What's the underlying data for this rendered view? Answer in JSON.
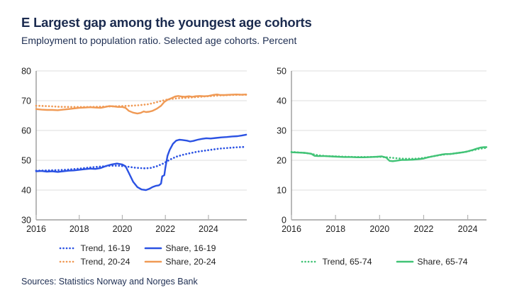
{
  "header": {
    "title": "E Largest gap among the youngest age cohorts",
    "subtitle": "Employment to population ratio. Selected age cohorts. Percent"
  },
  "footer": {
    "sources": "Sources: Statistics Norway and Norges Bank"
  },
  "colors": {
    "title_text": "#1b2b4f",
    "tick_text": "#1f1f1f",
    "grid": "#dedede",
    "axis": "#8a8a8a",
    "tick": "#b3b3b3",
    "blue": "#2b52e3",
    "orange": "#f09a55",
    "green": "#41c376"
  },
  "chart_data": [
    {
      "type": "line",
      "title": "",
      "xlabel": "",
      "ylabel": "",
      "grid": true,
      "legend_position": "bottom",
      "x_domain": [
        2016,
        2025.78
      ],
      "y_domain": [
        30,
        80
      ],
      "x_ticks": [
        2016,
        2018,
        2020,
        2022,
        2024
      ],
      "y_ticks": [
        30,
        40,
        50,
        60,
        70,
        80
      ],
      "series": [
        {
          "name": "Trend, 16-19",
          "color": "#2b52e3",
          "style": "dotted",
          "points": [
            [
              2016.0,
              46.5
            ],
            [
              2016.5,
              46.6
            ],
            [
              2017.0,
              46.7
            ],
            [
              2017.5,
              46.9
            ],
            [
              2018.0,
              47.2
            ],
            [
              2018.5,
              47.6
            ],
            [
              2019.0,
              47.9
            ],
            [
              2019.5,
              48.2
            ],
            [
              2019.8,
              48.2
            ],
            [
              2020.2,
              47.9
            ],
            [
              2020.6,
              47.5
            ],
            [
              2021.0,
              47.3
            ],
            [
              2021.3,
              47.4
            ],
            [
              2021.6,
              48.0
            ],
            [
              2021.9,
              48.9
            ],
            [
              2022.2,
              50.2
            ],
            [
              2022.5,
              51.2
            ],
            [
              2022.8,
              51.8
            ],
            [
              2023.1,
              52.3
            ],
            [
              2023.5,
              52.9
            ],
            [
              2024.0,
              53.4
            ],
            [
              2024.5,
              53.9
            ],
            [
              2025.0,
              54.2
            ],
            [
              2025.4,
              54.4
            ],
            [
              2025.75,
              54.5
            ]
          ]
        },
        {
          "name": "Share, 16-19",
          "color": "#2b52e3",
          "style": "solid",
          "points": [
            [
              2016.0,
              46.3
            ],
            [
              2016.25,
              46.4
            ],
            [
              2016.5,
              46.2
            ],
            [
              2016.75,
              46.3
            ],
            [
              2017.0,
              46.1
            ],
            [
              2017.25,
              46.3
            ],
            [
              2017.5,
              46.5
            ],
            [
              2017.75,
              46.6
            ],
            [
              2018.0,
              46.8
            ],
            [
              2018.25,
              47.0
            ],
            [
              2018.5,
              47.2
            ],
            [
              2018.75,
              47.1
            ],
            [
              2019.0,
              47.4
            ],
            [
              2019.25,
              48.1
            ],
            [
              2019.5,
              48.6
            ],
            [
              2019.75,
              48.9
            ],
            [
              2020.0,
              48.6
            ],
            [
              2020.15,
              48.0
            ],
            [
              2020.3,
              45.8
            ],
            [
              2020.5,
              42.8
            ],
            [
              2020.7,
              41.0
            ],
            [
              2020.9,
              40.2
            ],
            [
              2021.1,
              40.0
            ],
            [
              2021.25,
              40.4
            ],
            [
              2021.4,
              41.0
            ],
            [
              2021.55,
              41.4
            ],
            [
              2021.7,
              41.6
            ],
            [
              2021.8,
              42.2
            ],
            [
              2021.85,
              44.6
            ],
            [
              2021.95,
              45.0
            ],
            [
              2022.0,
              47.5
            ],
            [
              2022.1,
              51.5
            ],
            [
              2022.2,
              53.5
            ],
            [
              2022.35,
              55.5
            ],
            [
              2022.5,
              56.6
            ],
            [
              2022.65,
              56.9
            ],
            [
              2022.8,
              56.8
            ],
            [
              2023.0,
              56.6
            ],
            [
              2023.15,
              56.3
            ],
            [
              2023.3,
              56.5
            ],
            [
              2023.5,
              56.9
            ],
            [
              2023.7,
              57.2
            ],
            [
              2023.9,
              57.4
            ],
            [
              2024.1,
              57.3
            ],
            [
              2024.35,
              57.5
            ],
            [
              2024.6,
              57.7
            ],
            [
              2024.85,
              57.8
            ],
            [
              2025.1,
              58.0
            ],
            [
              2025.35,
              58.1
            ],
            [
              2025.55,
              58.3
            ],
            [
              2025.75,
              58.6
            ]
          ]
        },
        {
          "name": "Trend, 20-24",
          "color": "#f09a55",
          "style": "dotted",
          "points": [
            [
              2016.0,
              68.3
            ],
            [
              2016.5,
              68.2
            ],
            [
              2017.0,
              68.0
            ],
            [
              2017.5,
              67.9
            ],
            [
              2018.0,
              67.9
            ],
            [
              2018.5,
              67.9
            ],
            [
              2019.0,
              68.0
            ],
            [
              2019.5,
              68.1
            ],
            [
              2020.0,
              68.2
            ],
            [
              2020.4,
              68.3
            ],
            [
              2020.8,
              68.5
            ],
            [
              2021.2,
              68.8
            ],
            [
              2021.5,
              69.3
            ],
            [
              2021.8,
              69.9
            ],
            [
              2022.1,
              70.4
            ],
            [
              2022.4,
              70.7
            ],
            [
              2022.7,
              70.9
            ],
            [
              2023.0,
              71.0
            ],
            [
              2023.4,
              71.2
            ],
            [
              2023.8,
              71.4
            ],
            [
              2024.2,
              71.6
            ],
            [
              2024.6,
              71.8
            ],
            [
              2025.0,
              71.9
            ],
            [
              2025.4,
              72.0
            ],
            [
              2025.75,
              72.0
            ]
          ]
        },
        {
          "name": "Share, 20-24",
          "color": "#f09a55",
          "style": "solid",
          "points": [
            [
              2016.0,
              67.2
            ],
            [
              2016.25,
              67.0
            ],
            [
              2016.5,
              66.9
            ],
            [
              2016.75,
              66.9
            ],
            [
              2017.0,
              66.8
            ],
            [
              2017.25,
              67.0
            ],
            [
              2017.5,
              67.2
            ],
            [
              2017.75,
              67.4
            ],
            [
              2018.0,
              67.6
            ],
            [
              2018.25,
              67.7
            ],
            [
              2018.5,
              67.8
            ],
            [
              2018.75,
              67.7
            ],
            [
              2019.0,
              67.6
            ],
            [
              2019.2,
              67.9
            ],
            [
              2019.4,
              68.2
            ],
            [
              2019.6,
              68.1
            ],
            [
              2019.8,
              67.9
            ],
            [
              2020.0,
              67.9
            ],
            [
              2020.15,
              67.6
            ],
            [
              2020.3,
              66.6
            ],
            [
              2020.5,
              66.0
            ],
            [
              2020.7,
              65.7
            ],
            [
              2020.85,
              65.9
            ],
            [
              2021.0,
              66.4
            ],
            [
              2021.1,
              66.2
            ],
            [
              2021.25,
              66.3
            ],
            [
              2021.4,
              66.6
            ],
            [
              2021.6,
              67.3
            ],
            [
              2021.8,
              68.3
            ],
            [
              2021.95,
              69.6
            ],
            [
              2022.1,
              70.3
            ],
            [
              2022.3,
              70.9
            ],
            [
              2022.45,
              71.4
            ],
            [
              2022.6,
              71.6
            ],
            [
              2022.75,
              71.4
            ],
            [
              2022.9,
              71.3
            ],
            [
              2023.1,
              71.5
            ],
            [
              2023.25,
              71.3
            ],
            [
              2023.4,
              71.5
            ],
            [
              2023.6,
              71.6
            ],
            [
              2023.8,
              71.5
            ],
            [
              2024.0,
              71.6
            ],
            [
              2024.2,
              71.9
            ],
            [
              2024.4,
              72.1
            ],
            [
              2024.55,
              71.9
            ],
            [
              2024.75,
              71.9
            ],
            [
              2025.0,
              72.0
            ],
            [
              2025.3,
              72.1
            ],
            [
              2025.55,
              72.0
            ],
            [
              2025.75,
              72.1
            ]
          ]
        }
      ]
    },
    {
      "type": "line",
      "title": "",
      "xlabel": "",
      "ylabel": "",
      "grid": true,
      "legend_position": "bottom",
      "x_domain": [
        2016,
        2024.85
      ],
      "y_domain": [
        0,
        50
      ],
      "x_ticks": [
        2016,
        2018,
        2020,
        2022,
        2024
      ],
      "y_ticks": [
        0,
        10,
        20,
        30,
        40,
        50
      ],
      "series": [
        {
          "name": "Trend, 65-74",
          "color": "#41c376",
          "style": "dotted",
          "points": [
            [
              2016.0,
              22.8
            ],
            [
              2016.4,
              22.6
            ],
            [
              2016.8,
              22.3
            ],
            [
              2017.2,
              21.7
            ],
            [
              2017.6,
              21.4
            ],
            [
              2018.0,
              21.3
            ],
            [
              2018.5,
              21.2
            ],
            [
              2019.0,
              21.1
            ],
            [
              2019.5,
              21.1
            ],
            [
              2020.0,
              21.2
            ],
            [
              2020.3,
              21.0
            ],
            [
              2020.6,
              20.8
            ],
            [
              2020.9,
              20.6
            ],
            [
              2021.2,
              20.5
            ],
            [
              2021.5,
              20.5
            ],
            [
              2021.8,
              20.6
            ],
            [
              2022.1,
              20.9
            ],
            [
              2022.4,
              21.3
            ],
            [
              2022.7,
              21.7
            ],
            [
              2023.0,
              22.0
            ],
            [
              2023.3,
              22.2
            ],
            [
              2023.6,
              22.5
            ],
            [
              2023.9,
              22.8
            ],
            [
              2024.2,
              23.3
            ],
            [
              2024.5,
              23.8
            ],
            [
              2024.85,
              24.2
            ]
          ]
        },
        {
          "name": "Share, 65-74",
          "color": "#41c376",
          "style": "solid",
          "points": [
            [
              2016.0,
              22.7
            ],
            [
              2016.3,
              22.6
            ],
            [
              2016.6,
              22.5
            ],
            [
              2016.9,
              22.2
            ],
            [
              2017.05,
              21.5
            ],
            [
              2017.2,
              21.4
            ],
            [
              2017.5,
              21.4
            ],
            [
              2017.8,
              21.3
            ],
            [
              2018.1,
              21.2
            ],
            [
              2018.4,
              21.1
            ],
            [
              2018.7,
              21.1
            ],
            [
              2019.0,
              21.0
            ],
            [
              2019.3,
              21.0
            ],
            [
              2019.6,
              21.1
            ],
            [
              2019.9,
              21.2
            ],
            [
              2020.1,
              21.3
            ],
            [
              2020.3,
              20.9
            ],
            [
              2020.45,
              19.8
            ],
            [
              2020.6,
              19.7
            ],
            [
              2020.8,
              19.9
            ],
            [
              2021.0,
              20.1
            ],
            [
              2021.2,
              20.1
            ],
            [
              2021.5,
              20.2
            ],
            [
              2021.8,
              20.4
            ],
            [
              2022.0,
              20.6
            ],
            [
              2022.2,
              21.0
            ],
            [
              2022.4,
              21.3
            ],
            [
              2022.6,
              21.6
            ],
            [
              2022.8,
              21.9
            ],
            [
              2023.0,
              22.1
            ],
            [
              2023.2,
              22.1
            ],
            [
              2023.4,
              22.3
            ],
            [
              2023.6,
              22.5
            ],
            [
              2023.8,
              22.7
            ],
            [
              2024.0,
              23.0
            ],
            [
              2024.2,
              23.4
            ],
            [
              2024.4,
              23.9
            ],
            [
              2024.6,
              24.3
            ],
            [
              2024.75,
              24.4
            ],
            [
              2024.85,
              24.4
            ]
          ]
        }
      ]
    }
  ]
}
